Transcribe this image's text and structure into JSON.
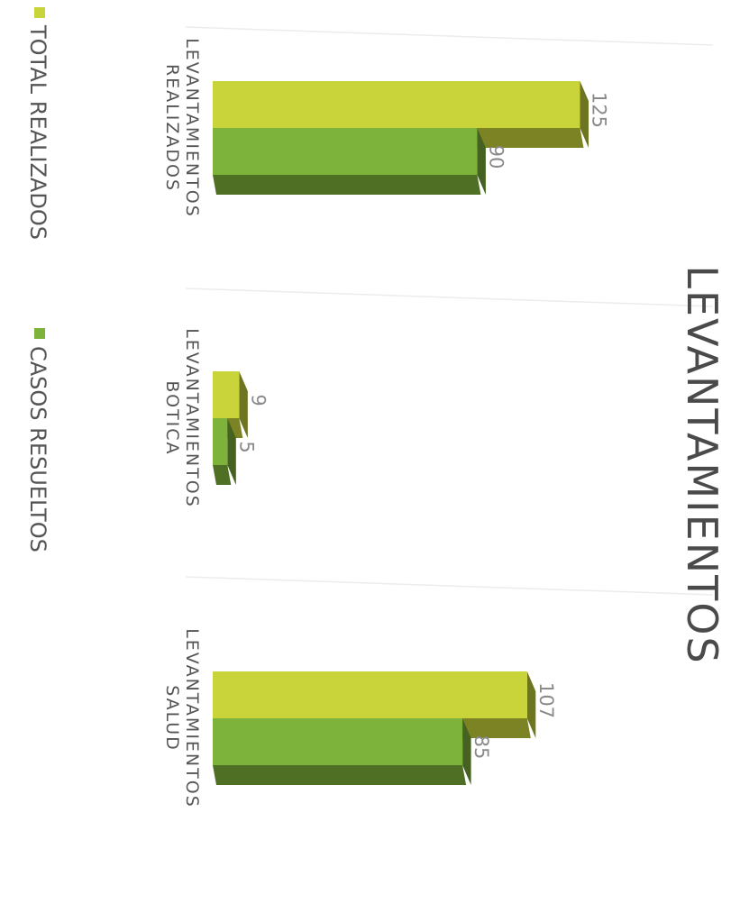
{
  "chart_data": {
    "type": "bar",
    "orientation": "horizontal-3d",
    "title": "LEVANTAMIENTOS",
    "categories": [
      [
        "LEVANTAMIENTOS",
        "REALIZADOS"
      ],
      [
        "LEVANTAMIENTOS",
        "BOTICA"
      ],
      [
        "LEVANTAMIENTOS",
        "SALUD"
      ]
    ],
    "series": [
      {
        "name": "TOTAL REALIZADOS",
        "values": [
          125,
          9,
          107
        ],
        "color": "#c8d43a"
      },
      {
        "name": "CASOS RESUELTOS",
        "values": [
          90,
          5,
          85
        ],
        "color": "#7db33a"
      }
    ],
    "xlim": [
      0,
      140
    ],
    "grid": true,
    "legend_position": "bottom",
    "rotation": "image rotated 90 degrees clockwise"
  }
}
